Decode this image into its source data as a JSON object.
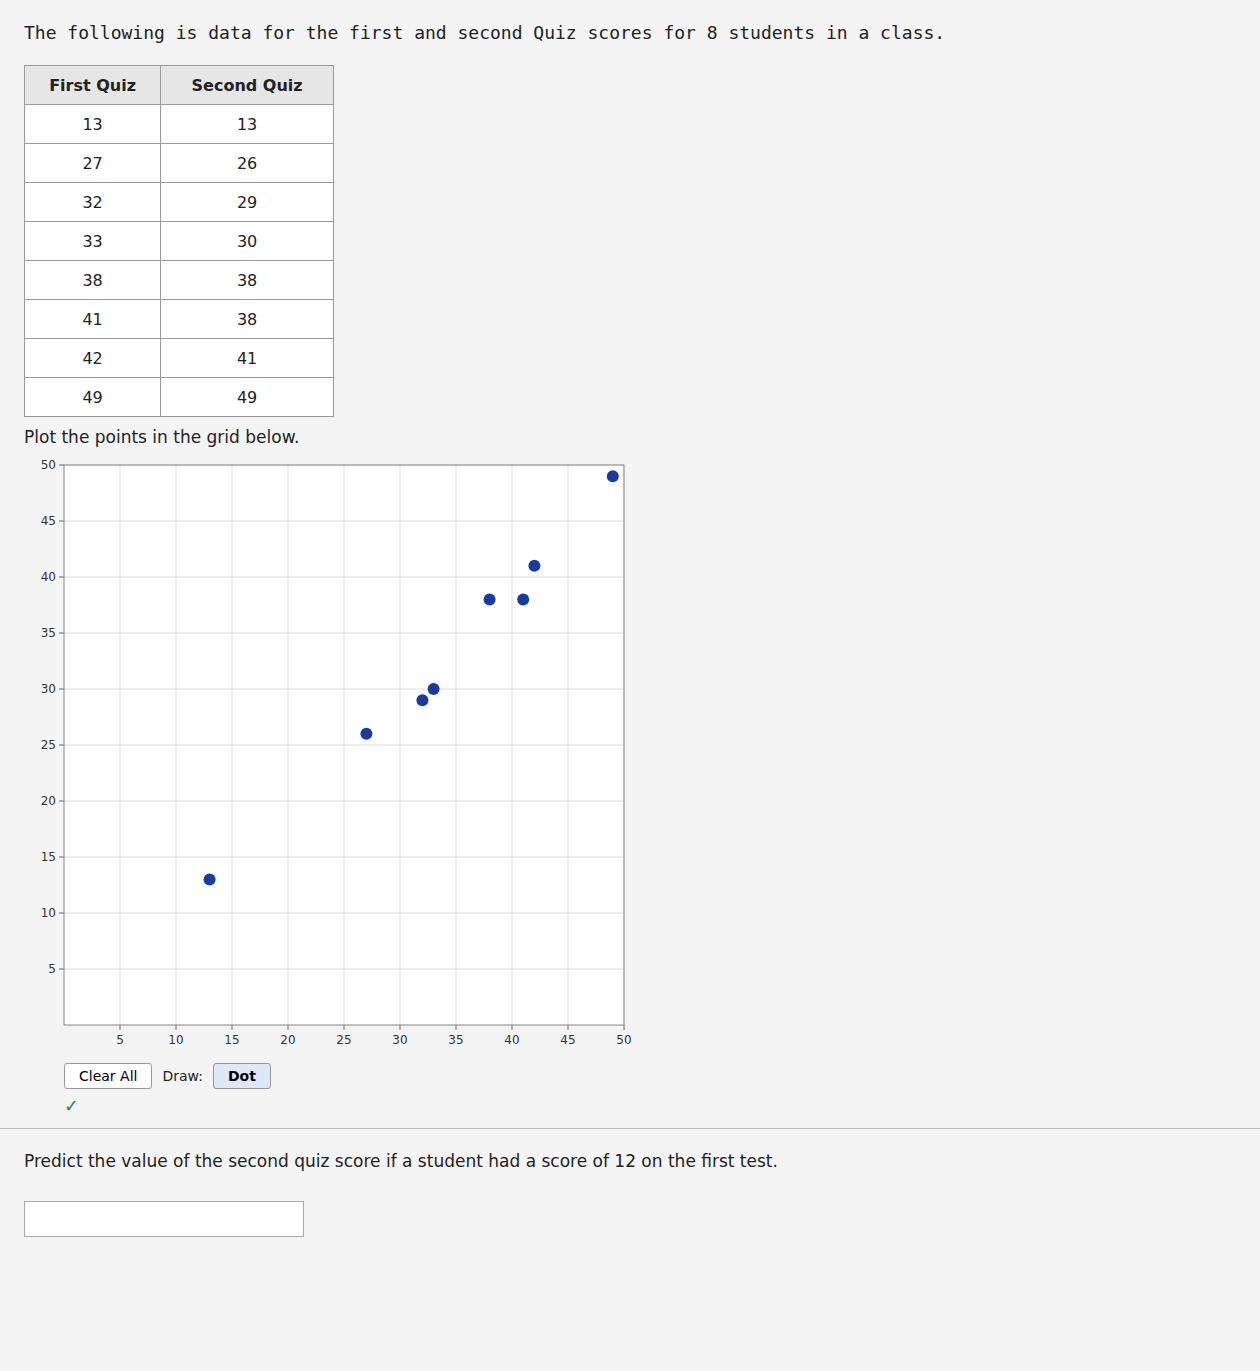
{
  "chart_data": {
    "type": "scatter",
    "title": "The following is data for the first and second Quiz scores for 8 students in a class.",
    "table_headers": [
      "First Quiz",
      "Second Quiz"
    ],
    "x": [
      13,
      27,
      32,
      33,
      38,
      41,
      42,
      49
    ],
    "values": [
      13,
      26,
      29,
      30,
      38,
      38,
      41,
      49
    ],
    "color": "#1a3a9e",
    "xlim": [
      0,
      50
    ],
    "ylim": [
      0,
      50
    ],
    "xticks": [
      5,
      10,
      15,
      20,
      25,
      30,
      35,
      40,
      45,
      50
    ],
    "yticks": [
      5,
      10,
      15,
      20,
      25,
      30,
      35,
      40,
      45,
      50
    ],
    "grid": true,
    "annotations": [
      "Plot the points in the grid below.",
      "Clear All",
      "Draw:",
      "Dot",
      "✓",
      "Predict the value of the second quiz score if a student had a score of 12 on the first test."
    ]
  }
}
